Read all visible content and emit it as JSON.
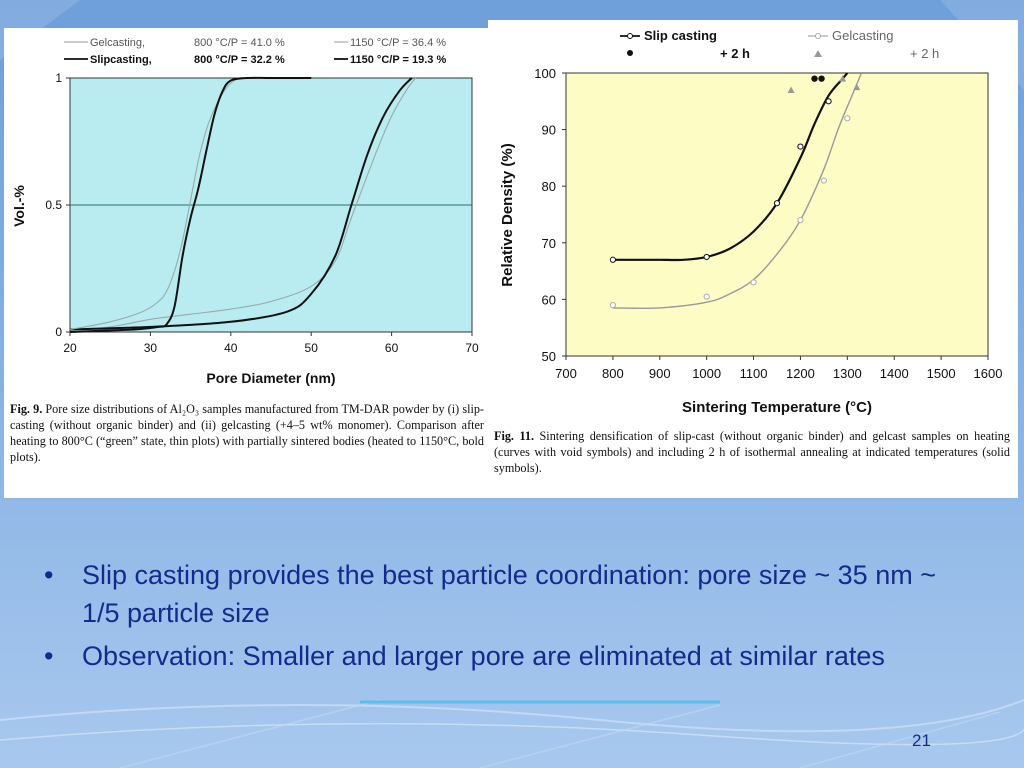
{
  "slide": {
    "bullets": [
      "Slip casting provides the best particle coordination: pore size ~ 35 nm ~ 1/5 particle size",
      "Observation: Smaller and larger pore are eliminated at similar rates"
    ],
    "page_number": "21",
    "text_color": "#142a8c"
  },
  "chart_data": [
    {
      "type": "line",
      "xlabel": "Pore Diameter (nm)",
      "ylabel": "Vol.-%",
      "xlim": [
        20,
        70
      ],
      "ylim": [
        0,
        1
      ],
      "x_ticks": [
        "20",
        "30",
        "40",
        "50",
        "60",
        "70"
      ],
      "y_ticks": [
        "0",
        "0.5",
        "1"
      ],
      "background": "#b8ecf0",
      "legend_position": "top",
      "legend": [
        {
          "label": "Gelcasting,",
          "cond1": "800 °C/P = 41.0 %",
          "cond2": "1150 °C/P = 36.4 %"
        },
        {
          "label": "Slipcasting,",
          "cond1": "800 °C/P = 32.2 %",
          "cond2": "1150 °C/P = 19.3 %"
        }
      ],
      "series": [
        {
          "key": "gel800",
          "style": "thin",
          "x": [
            20,
            25,
            30,
            35,
            40,
            45,
            50,
            53,
            55,
            58,
            60,
            62,
            63
          ],
          "y": [
            0.01,
            0.02,
            0.05,
            0.07,
            0.09,
            0.12,
            0.18,
            0.28,
            0.45,
            0.7,
            0.85,
            0.96,
            1.0
          ]
        },
        {
          "key": "gel1150",
          "style": "bold",
          "x": [
            20,
            30,
            40,
            47,
            50,
            53,
            55,
            57,
            59,
            61,
            62.5
          ],
          "y": [
            0.01,
            0.02,
            0.04,
            0.08,
            0.15,
            0.3,
            0.5,
            0.7,
            0.85,
            0.95,
            1.0
          ]
        },
        {
          "key": "slip800",
          "style": "thin",
          "x": [
            20,
            25,
            29,
            31,
            32,
            33,
            34,
            35,
            36,
            37,
            38,
            39,
            40,
            41
          ],
          "y": [
            0.01,
            0.04,
            0.08,
            0.12,
            0.16,
            0.24,
            0.36,
            0.52,
            0.68,
            0.8,
            0.88,
            0.94,
            0.98,
            1.0
          ]
        },
        {
          "key": "slip1150",
          "style": "bold",
          "x": [
            20,
            28,
            31,
            32,
            33,
            34,
            35,
            36,
            37,
            38,
            39,
            40,
            42,
            45,
            50
          ],
          "y": [
            0.0,
            0.01,
            0.02,
            0.03,
            0.1,
            0.3,
            0.45,
            0.57,
            0.72,
            0.86,
            0.95,
            0.99,
            1.0,
            1.0,
            1.0
          ]
        }
      ],
      "caption": {
        "label": "Fig. 9.",
        "text": "Pore size distributions of Al₂O₃ samples manufactured from TM-DAR powder by (i) slip-casting (without organic binder) and (ii) gelcasting (+4–5 wt% monomer). Comparison after heating to 800°C (“green” state, thin plots) with partially sintered bodies (heated to 1150°C, bold plots)."
      }
    },
    {
      "type": "line",
      "xlabel": "Sintering Temperature (°C)",
      "ylabel": "Relative Density (%)",
      "xlim": [
        700,
        1600
      ],
      "ylim": [
        50,
        100
      ],
      "x_ticks": [
        "700",
        "800",
        "900",
        "1000",
        "1100",
        "1200",
        "1300",
        "1400",
        "1500",
        "1600"
      ],
      "y_ticks": [
        "50",
        "60",
        "70",
        "80",
        "90",
        "100"
      ],
      "background": "#fcfcc4",
      "legend_position": "top",
      "legend": [
        {
          "label": "Slip casting",
          "hold": "+ 2 h"
        },
        {
          "label": "Gelcasting",
          "hold": "+ 2 h"
        }
      ],
      "series": [
        {
          "key": "slip",
          "x": [
            800,
            850,
            900,
            950,
            1000,
            1050,
            1100,
            1150,
            1200,
            1230,
            1260,
            1290,
            1300
          ],
          "y": [
            67,
            67,
            67,
            67,
            67.5,
            69,
            72,
            77,
            85,
            91,
            96,
            99,
            100
          ]
        },
        {
          "key": "gel",
          "x": [
            800,
            900,
            1000,
            1050,
            1100,
            1150,
            1200,
            1250,
            1280,
            1310,
            1330
          ],
          "y": [
            58.5,
            58.5,
            59.5,
            61,
            63.5,
            68,
            74,
            83,
            90,
            96,
            100
          ]
        }
      ],
      "markers_open": {
        "slip": {
          "x": [
            800,
            1000,
            1150,
            1200,
            1260
          ],
          "y": [
            67,
            67.5,
            77,
            87,
            95
          ]
        },
        "gel": {
          "x": [
            800,
            1000,
            1100,
            1200,
            1250,
            1300
          ],
          "y": [
            59,
            60.5,
            63,
            74,
            81,
            92
          ]
        }
      },
      "markers_solid": {
        "slip": {
          "x": [
            1230,
            1245
          ],
          "y": [
            99,
            99
          ]
        },
        "gel": {
          "x": [
            1180,
            1290,
            1320
          ],
          "y": [
            97,
            99,
            97.5
          ]
        }
      },
      "caption": {
        "label": "Fig. 11.",
        "text": "Sintering densification of slip-cast (without organic binder) and gelcast samples on heating (curves with void symbols) and including 2 h of isothermal annealing at indicated temperatures (solid symbols)."
      }
    }
  ]
}
